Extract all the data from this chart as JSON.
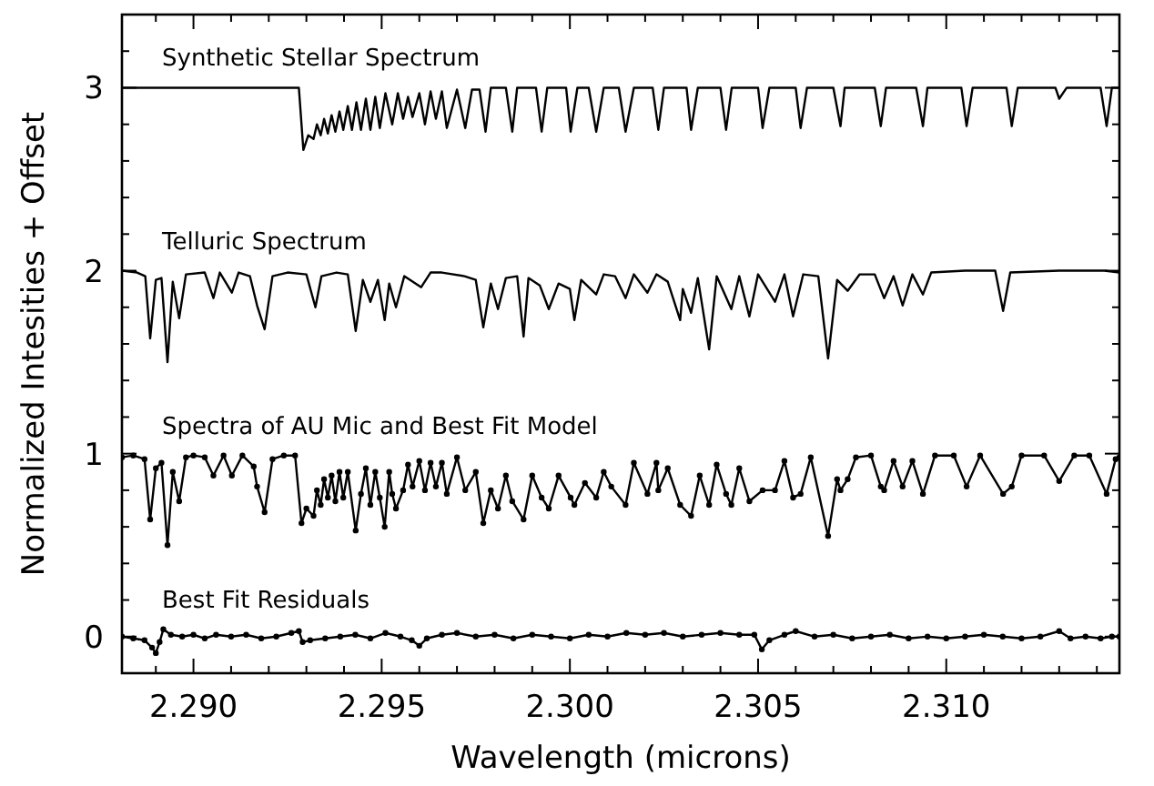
{
  "chart_data": {
    "type": "line",
    "xlabel": "Wavelength (microns)",
    "ylabel": "Normalized Intesities + Offset",
    "xlim": [
      2.2881,
      2.3146
    ],
    "ylim": [
      -0.2,
      3.4
    ],
    "xticks": [
      {
        "value": 2.289,
        "label": null
      },
      {
        "value": 2.29,
        "label": "2.290"
      },
      {
        "value": 2.291,
        "label": null
      },
      {
        "value": 2.292,
        "label": null
      },
      {
        "value": 2.293,
        "label": null
      },
      {
        "value": 2.294,
        "label": null
      },
      2.295,
      {
        "value": 2.296,
        "label": null
      },
      {
        "value": 2.297,
        "label": null
      },
      {
        "value": 2.298,
        "label": null
      },
      {
        "value": 2.299,
        "label": null
      },
      {
        "value": 2.3,
        "label": "2.300"
      },
      {
        "value": 2.301,
        "label": null
      },
      {
        "value": 2.302,
        "label": null
      },
      {
        "value": 2.303,
        "label": null
      },
      {
        "value": 2.304,
        "label": null
      },
      2.305,
      {
        "value": 2.306,
        "label": null
      },
      {
        "value": 2.307,
        "label": null
      },
      {
        "value": 2.308,
        "label": null
      },
      {
        "value": 2.309,
        "label": null
      },
      {
        "value": 2.31,
        "label": "2.310"
      },
      {
        "value": 2.311,
        "label": null
      },
      {
        "value": 2.312,
        "label": null
      },
      {
        "value": 2.313,
        "label": null
      },
      {
        "value": 2.314,
        "label": null
      }
    ],
    "yticks": [
      {
        "value": -0.2,
        "label": null
      },
      0,
      {
        "value": 0.2,
        "label": null
      },
      {
        "value": 0.4,
        "label": null
      },
      {
        "value": 0.6,
        "label": null
      },
      {
        "value": 0.8,
        "label": null
      },
      1,
      {
        "value": 1.2,
        "label": null
      },
      {
        "value": 1.4,
        "label": null
      },
      {
        "value": 1.6,
        "label": null
      },
      {
        "value": 1.8,
        "label": null
      },
      2,
      {
        "value": 2.2,
        "label": null
      },
      {
        "value": 2.4,
        "label": null
      },
      {
        "value": 2.6,
        "label": null
      },
      {
        "value": 2.8,
        "label": null
      },
      3,
      {
        "value": 3.2,
        "label": null
      },
      {
        "value": 3.4,
        "label": null
      }
    ],
    "grid": false,
    "line_style": "solid",
    "series": [
      {
        "name": "Synthetic Stellar Spectrum",
        "color": "#000000",
        "marker": "none",
        "x": [
          2.2881,
          2.29,
          2.292,
          2.2928,
          2.29292,
          2.29305,
          2.29319,
          2.29328,
          2.29338,
          2.29347,
          2.29357,
          2.29367,
          2.29377,
          2.29388,
          2.29398,
          2.2941,
          2.29421,
          2.29433,
          2.29445,
          2.29458,
          2.2947,
          2.29483,
          2.29495,
          2.2951,
          2.29528,
          2.29543,
          2.29557,
          2.2957,
          2.29582,
          2.296,
          2.29615,
          2.2963,
          2.29644,
          2.2966,
          2.29673,
          2.297,
          2.29722,
          2.2974,
          2.2976,
          2.29776,
          2.2979,
          2.2983,
          2.29847,
          2.2986,
          2.2991,
          2.29925,
          2.2994,
          2.2999,
          2.30002,
          2.3002,
          2.3005,
          2.3007,
          2.3009,
          2.3013,
          2.30148,
          2.3017,
          2.3022,
          2.30235,
          2.3025,
          2.3031,
          2.30322,
          2.3034,
          2.304,
          2.30415,
          2.3043,
          2.305,
          2.30512,
          2.3053,
          2.306,
          2.30613,
          2.3063,
          2.307,
          2.30719,
          2.3073,
          2.3081,
          2.30826,
          2.3084,
          2.3092,
          2.30938,
          2.3095,
          2.3104,
          2.31054,
          2.3107,
          2.3116,
          2.31174,
          2.3119,
          2.3129,
          2.313,
          2.3132,
          2.3141,
          2.31426,
          2.3144,
          2.3146
        ],
        "values": [
          3.0,
          3.0,
          3.0,
          3.0,
          2.66,
          2.74,
          2.72,
          2.8,
          2.74,
          2.83,
          2.75,
          2.85,
          2.76,
          2.87,
          2.77,
          2.9,
          2.77,
          2.92,
          2.77,
          2.94,
          2.77,
          2.95,
          2.78,
          2.97,
          2.8,
          2.97,
          2.83,
          2.95,
          2.84,
          2.97,
          2.8,
          2.98,
          2.83,
          2.98,
          2.78,
          2.99,
          2.78,
          2.99,
          2.99,
          2.76,
          3.0,
          3.0,
          2.76,
          3.0,
          3.0,
          2.76,
          3.0,
          3.0,
          2.76,
          3.0,
          3.0,
          2.76,
          3.0,
          3.0,
          2.76,
          3.0,
          3.0,
          2.77,
          3.0,
          3.0,
          2.77,
          3.0,
          3.0,
          2.77,
          3.0,
          3.0,
          2.78,
          3.0,
          3.0,
          2.78,
          3.0,
          3.0,
          2.79,
          3.0,
          3.0,
          2.79,
          3.0,
          3.0,
          2.79,
          3.0,
          3.0,
          2.79,
          3.0,
          3.0,
          2.79,
          3.0,
          3.0,
          2.94,
          3.0,
          3.0,
          2.79,
          3.0,
          3.0
        ]
      },
      {
        "name": "Telluric Spectrum",
        "color": "#000000",
        "marker": "none",
        "x": [
          2.2881,
          2.2885,
          2.28872,
          2.28885,
          2.289,
          2.28915,
          2.28931,
          2.28945,
          2.28962,
          2.2898,
          2.2903,
          2.29053,
          2.2907,
          2.29102,
          2.2912,
          2.2915,
          2.29169,
          2.29189,
          2.2921,
          2.2925,
          2.293,
          2.29324,
          2.2934,
          2.2938,
          2.2941,
          2.29431,
          2.2945,
          2.2947,
          2.2949,
          2.29508,
          2.2952,
          2.29538,
          2.2956,
          2.29605,
          2.2963,
          2.2966,
          2.2972,
          2.2975,
          2.2977,
          2.2979,
          2.29809,
          2.2983,
          2.2986,
          2.29877,
          2.2989,
          2.2992,
          2.29944,
          2.2997,
          2.3,
          2.30012,
          2.3003,
          2.3007,
          2.3009,
          2.3012,
          2.30148,
          2.3017,
          2.30206,
          2.3023,
          2.3026,
          2.30293,
          2.303,
          2.30322,
          2.3034,
          2.3037,
          2.3039,
          2.30429,
          2.3045,
          2.30477,
          2.305,
          2.30545,
          2.3057,
          2.30593,
          2.3062,
          2.3066,
          2.30686,
          2.3071,
          2.30738,
          2.3077,
          2.3081,
          2.30835,
          2.3086,
          2.30884,
          2.3091,
          2.30938,
          2.3096,
          2.3105,
          2.3113,
          2.31151,
          2.3117,
          2.313,
          2.3142,
          2.3146
        ],
        "values": [
          2.0,
          1.99,
          1.97,
          1.63,
          1.95,
          1.96,
          1.5,
          1.94,
          1.74,
          1.98,
          1.99,
          1.85,
          1.99,
          1.88,
          1.99,
          1.97,
          1.81,
          1.68,
          1.97,
          1.99,
          1.98,
          1.8,
          1.97,
          1.99,
          1.98,
          1.67,
          1.95,
          1.83,
          1.95,
          1.73,
          1.93,
          1.8,
          1.97,
          1.91,
          1.99,
          1.99,
          1.97,
          1.95,
          1.69,
          1.93,
          1.79,
          1.96,
          1.97,
          1.64,
          1.96,
          1.92,
          1.79,
          1.93,
          1.9,
          1.73,
          1.95,
          1.87,
          1.98,
          1.97,
          1.85,
          1.98,
          1.88,
          1.98,
          1.94,
          1.73,
          1.9,
          1.77,
          1.96,
          1.57,
          1.97,
          1.79,
          1.97,
          1.75,
          1.98,
          1.83,
          1.98,
          1.75,
          1.98,
          1.97,
          1.52,
          1.95,
          1.89,
          1.98,
          1.98,
          1.85,
          1.97,
          1.81,
          1.98,
          1.87,
          1.99,
          2.0,
          2.0,
          1.78,
          1.99,
          2.0,
          2.0,
          1.99
        ]
      },
      {
        "name": "Spectra of AU Mic and Best Fit Model",
        "color": "#000000",
        "marker": "circle",
        "x": [
          2.2881,
          2.2884,
          2.2887,
          2.28885,
          2.289,
          2.28915,
          2.28931,
          2.28945,
          2.28962,
          2.2898,
          2.29,
          2.2903,
          2.29053,
          2.2908,
          2.29102,
          2.2913,
          2.2916,
          2.29169,
          2.29189,
          2.2921,
          2.2924,
          2.2927,
          2.29287,
          2.293,
          2.29319,
          2.29328,
          2.29338,
          2.29347,
          2.29357,
          2.29367,
          2.29377,
          2.29388,
          2.29398,
          2.2941,
          2.29431,
          2.29445,
          2.29458,
          2.2947,
          2.29483,
          2.29495,
          2.29508,
          2.2952,
          2.29528,
          2.29538,
          2.29557,
          2.2957,
          2.29582,
          2.296,
          2.29615,
          2.2963,
          2.29644,
          2.2966,
          2.29673,
          2.297,
          2.29722,
          2.2975,
          2.2977,
          2.2979,
          2.29809,
          2.2983,
          2.29847,
          2.29877,
          2.299,
          2.29925,
          2.29944,
          2.2997,
          2.30002,
          2.30012,
          2.3004,
          2.3007,
          2.3009,
          2.3011,
          2.30148,
          2.3017,
          2.30206,
          2.3023,
          2.30235,
          2.3026,
          2.30293,
          2.30322,
          2.30345,
          2.3037,
          2.3039,
          2.30415,
          2.30429,
          2.3045,
          2.30477,
          2.30512,
          2.30545,
          2.3057,
          2.30593,
          2.30613,
          2.3064,
          2.30686,
          2.3071,
          2.30719,
          2.30738,
          2.3076,
          2.308,
          2.30826,
          2.30835,
          2.3086,
          2.30884,
          2.3091,
          2.30938,
          2.3097,
          2.3102,
          2.31054,
          2.3109,
          2.31151,
          2.31174,
          2.312,
          2.3126,
          2.313,
          2.3134,
          2.3138,
          2.31426,
          2.3145,
          2.3146
        ],
        "values": [
          0.98,
          0.99,
          0.97,
          0.64,
          0.92,
          0.95,
          0.5,
          0.9,
          0.74,
          0.98,
          0.99,
          0.98,
          0.88,
          0.99,
          0.88,
          0.99,
          0.93,
          0.82,
          0.68,
          0.97,
          0.99,
          0.99,
          0.62,
          0.7,
          0.66,
          0.8,
          0.72,
          0.86,
          0.76,
          0.88,
          0.74,
          0.9,
          0.76,
          0.9,
          0.58,
          0.78,
          0.92,
          0.72,
          0.9,
          0.76,
          0.6,
          0.9,
          0.78,
          0.7,
          0.8,
          0.94,
          0.82,
          0.96,
          0.8,
          0.95,
          0.82,
          0.95,
          0.78,
          0.98,
          0.8,
          0.9,
          0.62,
          0.8,
          0.7,
          0.88,
          0.74,
          0.64,
          0.88,
          0.76,
          0.7,
          0.88,
          0.76,
          0.72,
          0.84,
          0.76,
          0.9,
          0.82,
          0.72,
          0.95,
          0.78,
          0.95,
          0.8,
          0.92,
          0.72,
          0.66,
          0.88,
          0.72,
          0.94,
          0.78,
          0.72,
          0.92,
          0.74,
          0.8,
          0.8,
          0.96,
          0.76,
          0.78,
          0.98,
          0.55,
          0.86,
          0.8,
          0.86,
          0.98,
          0.99,
          0.82,
          0.8,
          0.96,
          0.82,
          0.96,
          0.78,
          0.99,
          0.99,
          0.82,
          0.99,
          0.78,
          0.82,
          0.99,
          0.99,
          0.85,
          0.99,
          0.99,
          0.78,
          0.97,
          0.98
        ]
      },
      {
        "name": "Best Fit Residuals",
        "color": "#000000",
        "marker": "circle",
        "x": [
          2.2881,
          2.2884,
          2.2887,
          2.2889,
          2.289,
          2.2891,
          2.2892,
          2.2894,
          2.2897,
          2.29,
          2.2903,
          2.2906,
          2.291,
          2.2914,
          2.2918,
          2.2922,
          2.2926,
          2.2928,
          2.2929,
          2.2931,
          2.2935,
          2.2939,
          2.2943,
          2.2947,
          2.2951,
          2.2955,
          2.2958,
          2.296,
          2.2962,
          2.2966,
          2.297,
          2.2975,
          2.298,
          2.2985,
          2.299,
          2.2995,
          2.3,
          2.3005,
          2.301,
          2.3015,
          2.302,
          2.3025,
          2.303,
          2.3035,
          2.304,
          2.3045,
          2.3049,
          2.3051,
          2.3053,
          2.3057,
          2.306,
          2.3065,
          2.307,
          2.3075,
          2.308,
          2.3085,
          2.309,
          2.3095,
          2.31,
          2.3105,
          2.311,
          2.3115,
          2.312,
          2.3125,
          2.313,
          2.3133,
          2.3137,
          2.3141,
          2.3144,
          2.3146
        ],
        "values": [
          0.0,
          -0.01,
          -0.02,
          -0.06,
          -0.09,
          -0.03,
          0.04,
          0.01,
          0.0,
          0.01,
          -0.01,
          0.01,
          0.0,
          0.01,
          -0.01,
          0.0,
          0.02,
          0.03,
          -0.03,
          -0.02,
          -0.01,
          0.0,
          0.01,
          -0.01,
          0.02,
          0.0,
          -0.02,
          -0.05,
          -0.01,
          0.01,
          0.02,
          0.0,
          0.01,
          -0.01,
          0.01,
          0.0,
          -0.01,
          0.01,
          0.0,
          0.02,
          0.01,
          0.02,
          0.0,
          0.01,
          0.02,
          0.01,
          0.01,
          -0.07,
          -0.02,
          0.01,
          0.03,
          0.0,
          0.01,
          -0.01,
          0.0,
          0.01,
          -0.01,
          0.0,
          -0.01,
          0.0,
          0.01,
          0.0,
          -0.01,
          0.0,
          0.03,
          -0.01,
          0.0,
          -0.01,
          0.0,
          0.0
        ]
      }
    ]
  }
}
